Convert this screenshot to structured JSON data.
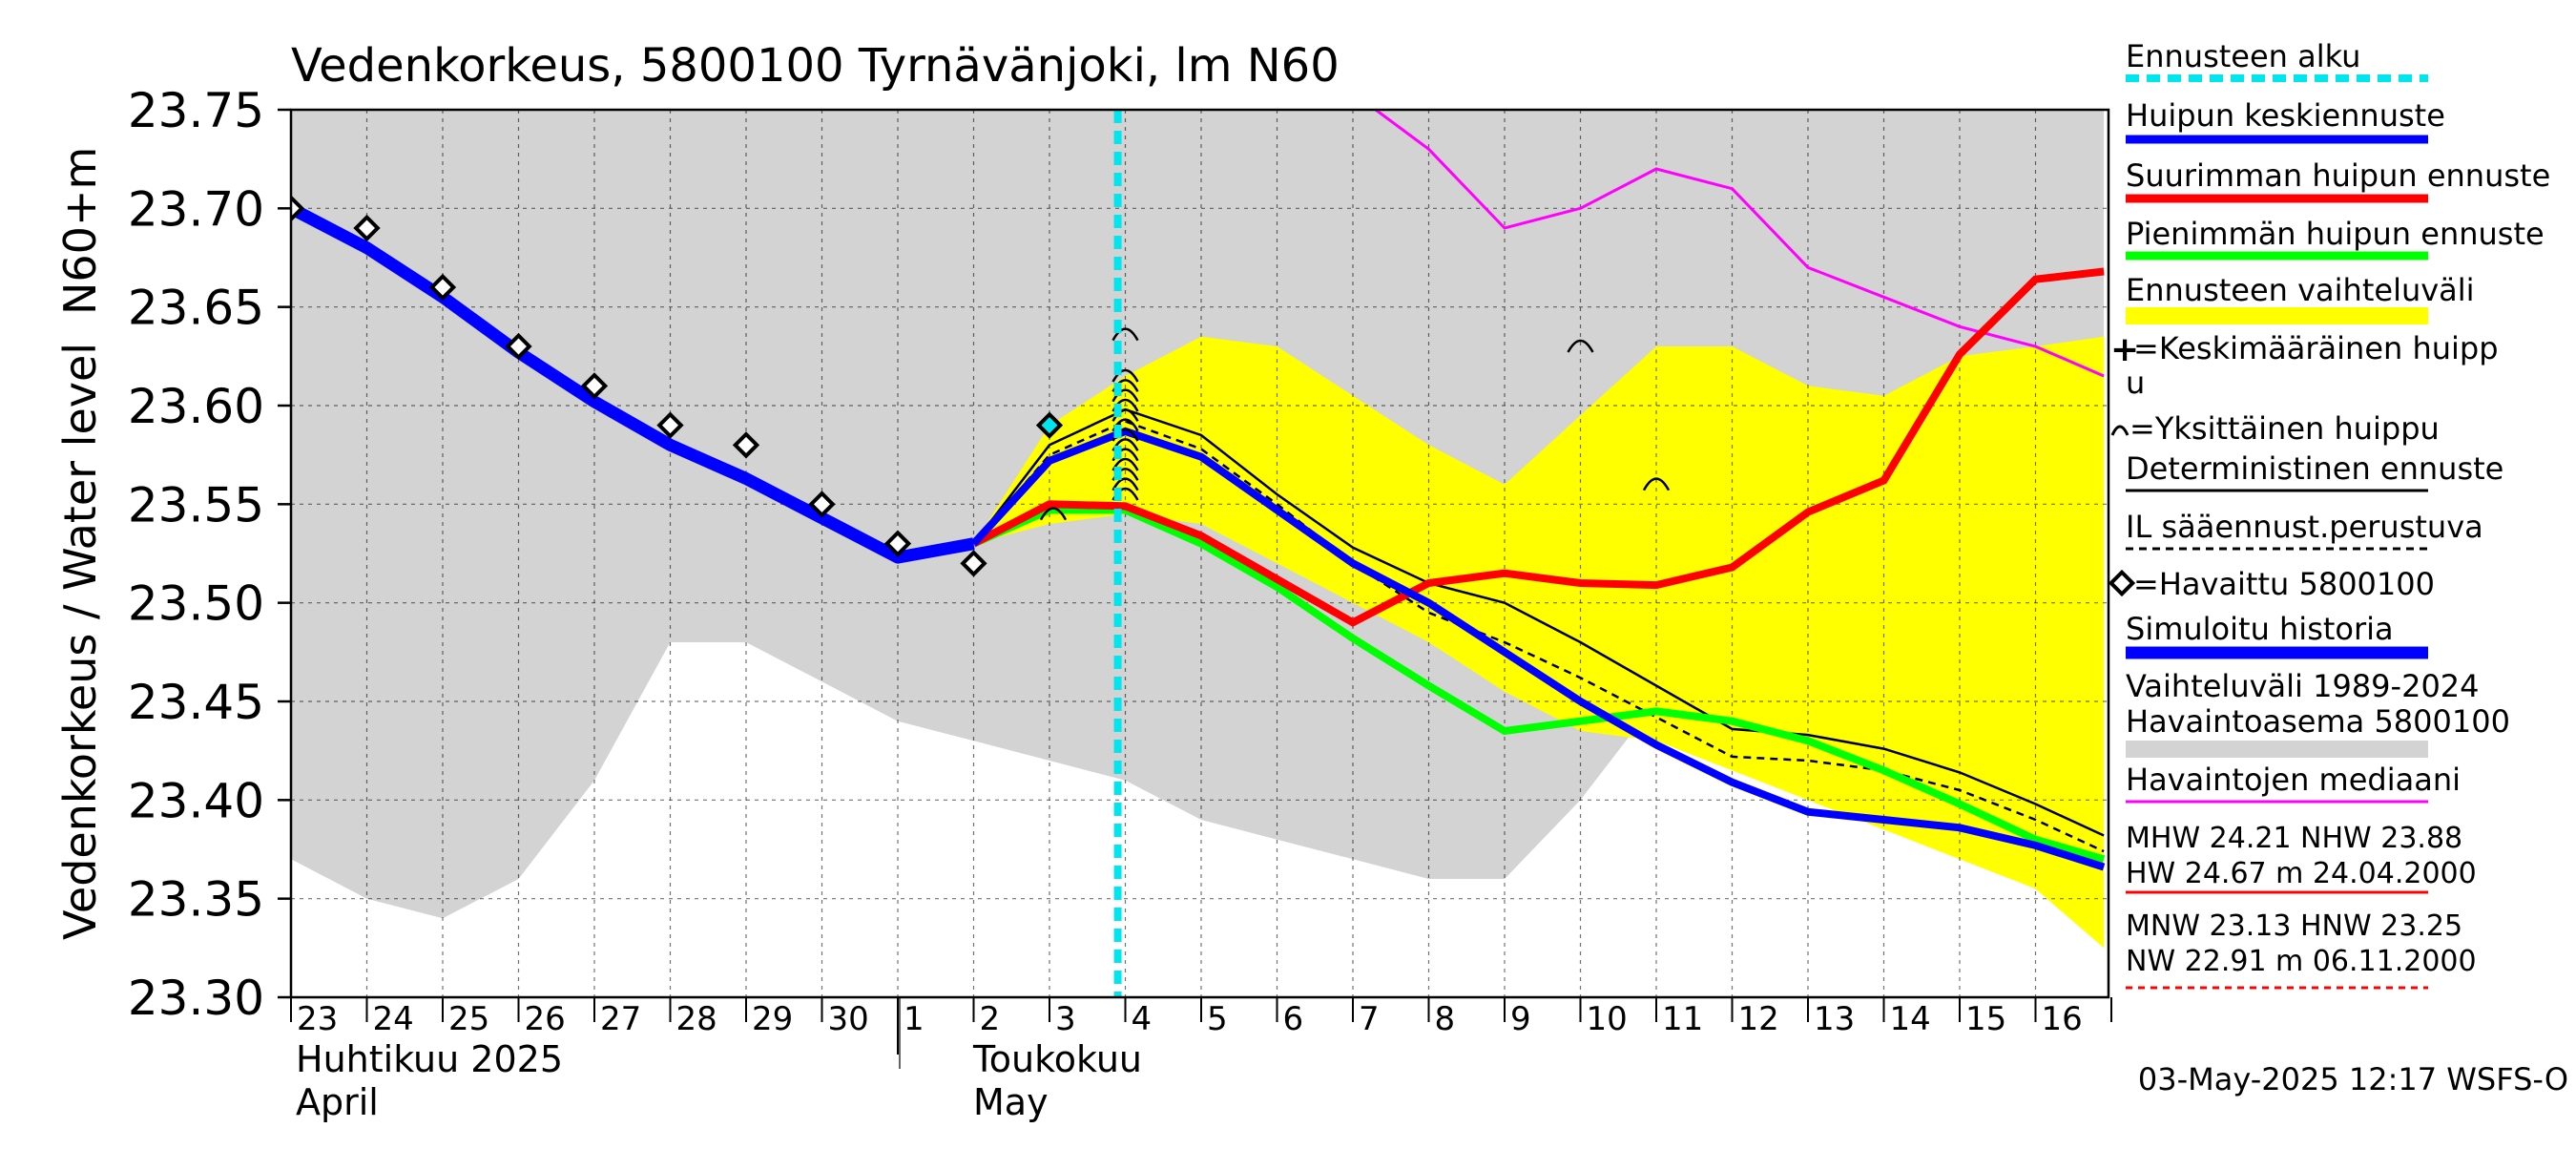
{
  "chart_data": {
    "type": "line",
    "title": "Vedenkorkeus, 5800100 Tyrnävänjoki, lm N60",
    "ylabel_top": "N60+m",
    "ylabel_bottom": "Vedenkorkeus / Water level",
    "ylim": [
      23.3,
      23.75
    ],
    "y_ticks": [
      "23.30",
      "23.35",
      "23.40",
      "23.45",
      "23.50",
      "23.55",
      "23.60",
      "23.65",
      "23.70",
      "23.75"
    ],
    "x_day_labels": [
      "23",
      "24",
      "25",
      "26",
      "27",
      "28",
      "29",
      "30",
      "1",
      "2",
      "3",
      "4",
      "5",
      "6",
      "7",
      "8",
      "9",
      "10",
      "11",
      "12",
      "13",
      "14",
      "15",
      "16"
    ],
    "month_labels": {
      "april_fi": "Huhtikuu  2025",
      "april_en": "April",
      "may_fi": "Toukokuu",
      "may_en": "May"
    },
    "forecast_start_day": 10.9,
    "colors": {
      "historical_range": "#d3d3d3",
      "forecast_range": "#ffff00",
      "median": "#ff00ff",
      "mean_peak": "#0000ff",
      "max_peak": "#ff0000",
      "min_peak": "#00ff00",
      "forecast_start": "#00e5ee",
      "observed": "#000000"
    },
    "series": {
      "hist_range_upper": [
        [
          0,
          23.75
        ],
        [
          23.9,
          23.75
        ]
      ],
      "hist_range_lower": [
        [
          0,
          23.37
        ],
        [
          1,
          23.35
        ],
        [
          2,
          23.34
        ],
        [
          3,
          23.36
        ],
        [
          4,
          23.41
        ],
        [
          5,
          23.48
        ],
        [
          6,
          23.48
        ],
        [
          7,
          23.46
        ],
        [
          8,
          23.44
        ],
        [
          9,
          23.43
        ],
        [
          10,
          23.42
        ],
        [
          11,
          23.41
        ],
        [
          12,
          23.39
        ],
        [
          13,
          23.38
        ],
        [
          14,
          23.37
        ],
        [
          15,
          23.36
        ],
        [
          16,
          23.36
        ],
        [
          17,
          23.4
        ],
        [
          18,
          23.45
        ],
        [
          19,
          23.44
        ],
        [
          20,
          23.43
        ],
        [
          21,
          23.42
        ],
        [
          22,
          23.4
        ],
        [
          23,
          23.38
        ],
        [
          23.9,
          23.39
        ]
      ],
      "forecast_range_upper": [
        [
          9.0,
          23.53
        ],
        [
          10.0,
          23.59
        ],
        [
          11.0,
          23.615
        ],
        [
          12.0,
          23.635
        ],
        [
          13.0,
          23.63
        ],
        [
          14.0,
          23.605
        ],
        [
          15.0,
          23.58
        ],
        [
          16.0,
          23.56
        ],
        [
          17.0,
          23.595
        ],
        [
          18.0,
          23.63
        ],
        [
          19.0,
          23.63
        ],
        [
          20.0,
          23.61
        ],
        [
          21.0,
          23.605
        ],
        [
          22.0,
          23.625
        ],
        [
          23.0,
          23.63
        ],
        [
          23.9,
          23.635
        ]
      ],
      "forecast_range_lower": [
        [
          9.0,
          23.53
        ],
        [
          10.0,
          23.54
        ],
        [
          11.0,
          23.545
        ],
        [
          12.0,
          23.54
        ],
        [
          13.0,
          23.52
        ],
        [
          14.0,
          23.5
        ],
        [
          15.0,
          23.48
        ],
        [
          16.0,
          23.455
        ],
        [
          17.0,
          23.435
        ],
        [
          18.0,
          23.43
        ],
        [
          19.0,
          23.415
        ],
        [
          20.0,
          23.4
        ],
        [
          21.0,
          23.385
        ],
        [
          22.0,
          23.37
        ],
        [
          23.0,
          23.355
        ],
        [
          23.9,
          23.325
        ]
      ],
      "median": [
        [
          14.3,
          23.75
        ],
        [
          15.0,
          23.73
        ],
        [
          16.0,
          23.69
        ],
        [
          17.0,
          23.7
        ],
        [
          18.0,
          23.72
        ],
        [
          19.0,
          23.71
        ],
        [
          20.0,
          23.67
        ],
        [
          21.0,
          23.655
        ],
        [
          22.0,
          23.64
        ],
        [
          23.0,
          23.63
        ],
        [
          23.9,
          23.615
        ]
      ],
      "simulated_history": [
        [
          0,
          23.7
        ],
        [
          1,
          23.68
        ],
        [
          2,
          23.655
        ],
        [
          3,
          23.627
        ],
        [
          4,
          23.602
        ],
        [
          5,
          23.58
        ],
        [
          6,
          23.563
        ],
        [
          7,
          23.543
        ],
        [
          8,
          23.523
        ],
        [
          9,
          23.53
        ]
      ],
      "max_peak_forecast": [
        [
          9,
          23.53
        ],
        [
          10,
          23.55
        ],
        [
          11,
          23.549
        ],
        [
          12,
          23.534
        ],
        [
          13,
          23.512
        ],
        [
          14,
          23.49
        ],
        [
          15,
          23.51
        ],
        [
          16,
          23.515
        ],
        [
          17,
          23.51
        ],
        [
          18,
          23.509
        ],
        [
          19,
          23.518
        ],
        [
          20,
          23.546
        ],
        [
          21,
          23.562
        ],
        [
          22,
          23.626
        ],
        [
          23,
          23.664
        ],
        [
          23.9,
          23.668
        ]
      ],
      "min_peak_forecast": [
        [
          9,
          23.53
        ],
        [
          10,
          23.547
        ],
        [
          11,
          23.547
        ],
        [
          12,
          23.53
        ],
        [
          13,
          23.508
        ],
        [
          14,
          23.482
        ],
        [
          15,
          23.458
        ],
        [
          16,
          23.435
        ],
        [
          17,
          23.44
        ],
        [
          18,
          23.445
        ],
        [
          19,
          23.44
        ],
        [
          20,
          23.43
        ],
        [
          21,
          23.415
        ],
        [
          22,
          23.398
        ],
        [
          23,
          23.38
        ],
        [
          23.9,
          23.37
        ]
      ],
      "mean_peak_forecast": [
        [
          9,
          23.53
        ],
        [
          10,
          23.572
        ],
        [
          11,
          23.587
        ],
        [
          12,
          23.574
        ],
        [
          13,
          23.547
        ],
        [
          14,
          23.52
        ],
        [
          15,
          23.5
        ],
        [
          16,
          23.475
        ],
        [
          17,
          23.45
        ],
        [
          18,
          23.428
        ],
        [
          19,
          23.409
        ],
        [
          20,
          23.394
        ],
        [
          21,
          23.39
        ],
        [
          22,
          23.386
        ],
        [
          23,
          23.377
        ],
        [
          23.9,
          23.366
        ]
      ],
      "deterministic": [
        [
          9,
          23.53
        ],
        [
          10,
          23.58
        ],
        [
          11,
          23.598
        ],
        [
          12,
          23.585
        ],
        [
          13,
          23.555
        ],
        [
          14,
          23.528
        ],
        [
          15,
          23.51
        ],
        [
          16,
          23.5
        ],
        [
          17,
          23.48
        ],
        [
          18,
          23.458
        ],
        [
          19,
          23.436
        ],
        [
          20,
          23.433
        ],
        [
          21,
          23.426
        ],
        [
          22,
          23.414
        ],
        [
          23,
          23.398
        ],
        [
          23.9,
          23.382
        ]
      ],
      "il_weather_forecast": [
        [
          9,
          23.53
        ],
        [
          10,
          23.575
        ],
        [
          11,
          23.592
        ],
        [
          12,
          23.578
        ],
        [
          13,
          23.55
        ],
        [
          14,
          23.52
        ],
        [
          15,
          23.495
        ],
        [
          16,
          23.48
        ],
        [
          17,
          23.462
        ],
        [
          18,
          23.442
        ],
        [
          19,
          23.422
        ],
        [
          20,
          23.42
        ],
        [
          21,
          23.415
        ],
        [
          22,
          23.405
        ],
        [
          23,
          23.39
        ],
        [
          23.9,
          23.374
        ]
      ],
      "observed": [
        [
          0,
          23.7
        ],
        [
          1,
          23.69
        ],
        [
          2,
          23.66
        ],
        [
          3,
          23.63
        ],
        [
          4,
          23.61
        ],
        [
          5,
          23.59
        ],
        [
          6,
          23.58
        ],
        [
          7,
          23.55
        ],
        [
          8,
          23.53
        ],
        [
          9,
          23.52
        ],
        [
          10,
          23.59
        ]
      ],
      "individual_peaks": [
        [
          10.05,
          23.545
        ],
        [
          11,
          23.555
        ],
        [
          11,
          23.56
        ],
        [
          11,
          23.565
        ],
        [
          11,
          23.57
        ],
        [
          11,
          23.575
        ],
        [
          11,
          23.58
        ],
        [
          11,
          23.585
        ],
        [
          11,
          23.59
        ],
        [
          11,
          23.595
        ],
        [
          11,
          23.6
        ],
        [
          11,
          23.605
        ],
        [
          11,
          23.61
        ],
        [
          11,
          23.615
        ],
        [
          11,
          23.636
        ],
        [
          17,
          23.63
        ],
        [
          18,
          23.56
        ]
      ]
    },
    "legend": {
      "forecast_start": "Ennusteen alku",
      "mean_peak": "Huipun keskiennuste",
      "max_peak": "Suurimman huipun ennuste",
      "min_peak": "Pienimmän huipun ennuste",
      "forecast_range": "Ennusteen vaihteluväli",
      "mean_peak_marker_a": "=Keskimääräinen huipp",
      "mean_peak_marker_b": "u",
      "individual_peak_marker": "=Yksittäinen huippu",
      "deterministic": "Deterministinen ennuste",
      "il_forecast": "IL sääennust.perustuva",
      "observed": "=Havaittu 5800100",
      "simulated": "Simuloitu historia",
      "range_a": "Vaihteluväli 1989-2024",
      "range_b": " Havaintoasema 5800100",
      "median": "Havaintojen mediaani",
      "stats_1": "MHW  24.21 NHW  23.88",
      "stats_2": "HW  24.67 m 24.04.2000",
      "stats_3": "MNW  23.13 HNW  23.25",
      "stats_4": "NW  22.91 m 06.11.2000"
    },
    "footer": "03-May-2025 12:17 WSFS-O"
  }
}
